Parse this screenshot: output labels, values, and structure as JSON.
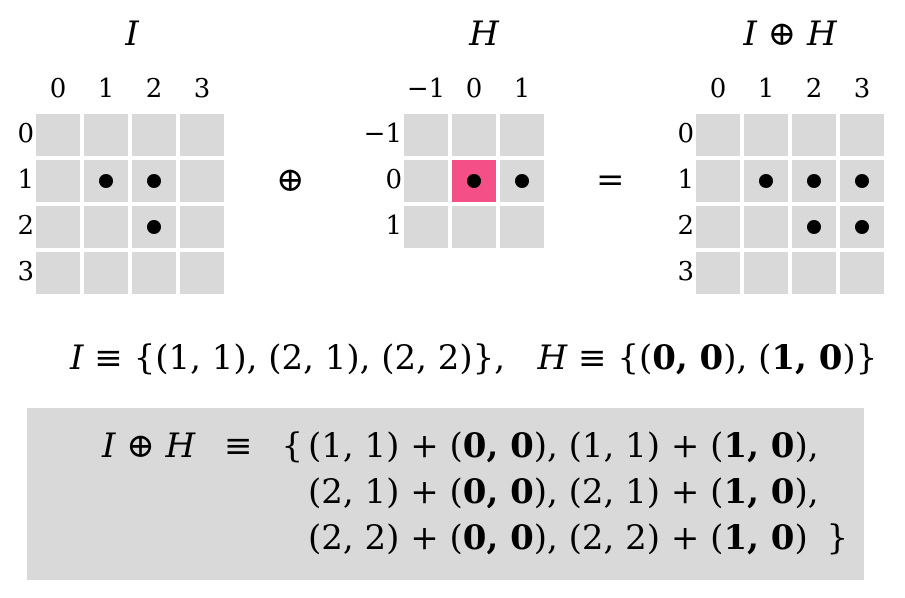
{
  "grids": [
    {
      "title": "I",
      "col_labels": [
        "0",
        "1",
        "2",
        "3"
      ],
      "row_labels": [
        "0",
        "1",
        "2",
        "3"
      ],
      "points": [
        [
          1,
          1
        ],
        [
          2,
          1
        ],
        [
          2,
          2
        ]
      ],
      "highlight": []
    },
    {
      "title": "H",
      "col_labels": [
        "−1",
        "0",
        "1"
      ],
      "row_labels": [
        "−1",
        "0",
        "1"
      ],
      "points": [
        [
          1,
          1
        ],
        [
          2,
          1
        ]
      ],
      "highlight": [
        [
          1,
          1
        ]
      ]
    },
    {
      "title": "I ⊕ H",
      "col_labels": [
        "0",
        "1",
        "2",
        "3"
      ],
      "row_labels": [
        "0",
        "1",
        "2",
        "3"
      ],
      "points": [
        [
          1,
          1
        ],
        [
          2,
          1
        ],
        [
          3,
          1
        ],
        [
          2,
          2
        ],
        [
          3,
          2
        ]
      ],
      "highlight": []
    }
  ],
  "operators": {
    "plus": "⊕",
    "equals": "="
  },
  "definition": {
    "i_var": "I",
    "equiv": "≡",
    "i_set": "{(1, 1), (2, 1), (2, 2)},",
    "h_var": "H",
    "h_set_open": "{(",
    "h_p1": "0, 0",
    "h_mid": "), (",
    "h_p2": "1, 0",
    "h_set_close": ")}"
  },
  "expansion": {
    "lhs": "I ⊕ H",
    "equiv": "≡",
    "brace_open": "{",
    "brace_close": "}",
    "lines": [
      {
        "a": "(1, 1) + (",
        "b1": "0, 0",
        "c": "), (1, 1) + (",
        "b2": "1, 0",
        "d": "),",
        "opener": true,
        "closer": false
      },
      {
        "a": "(2, 1) + (",
        "b1": "0, 0",
        "c": "), (2, 1) + (",
        "b2": "1, 0",
        "d": "),",
        "opener": false,
        "closer": false
      },
      {
        "a": "(2, 2) + (",
        "b1": "0, 0",
        "c": "), (2, 2) + (",
        "b2": "1, 0",
        "d": ")",
        "opener": false,
        "closer": true
      }
    ]
  }
}
